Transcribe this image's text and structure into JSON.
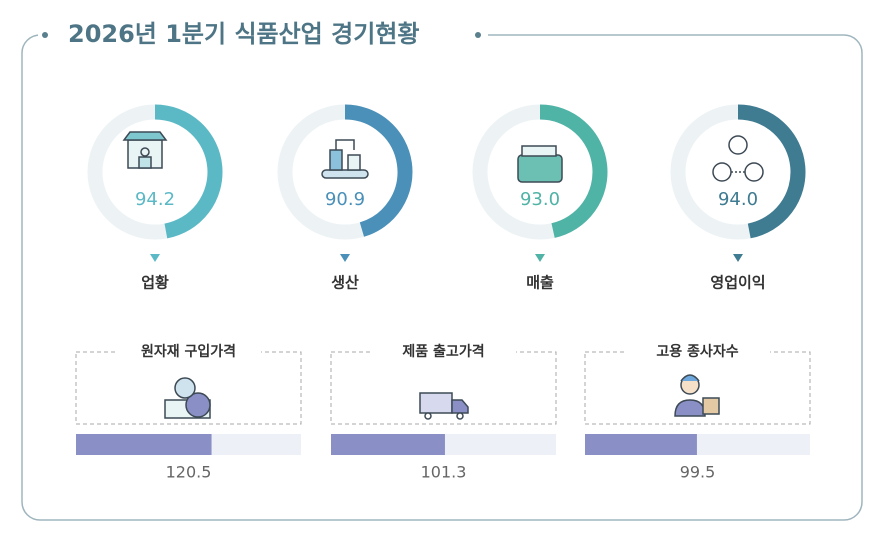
{
  "title": "2026년 1분기 식품산업 경기현황",
  "chart_data": [
    {
      "type": "gauge",
      "categories": [
        "업황",
        "생산",
        "매출",
        "영업이익"
      ],
      "values": [
        94.2,
        90.9,
        93.0,
        94.0
      ],
      "value_labels": [
        "94.2",
        "90.9",
        "93.0",
        "94.0"
      ],
      "colors": [
        "#5bb9c6",
        "#4a90b9",
        "#4fb3a6",
        "#3f7b91"
      ],
      "ylim": [
        0,
        200
      ]
    },
    {
      "type": "bar",
      "categories": [
        "원자재 구입가격",
        "제품 출고가격",
        "고용 종사자수"
      ],
      "values": [
        120.5,
        101.3,
        99.5
      ],
      "color": "#8a90c6",
      "ylim": [
        0,
        200
      ]
    }
  ]
}
